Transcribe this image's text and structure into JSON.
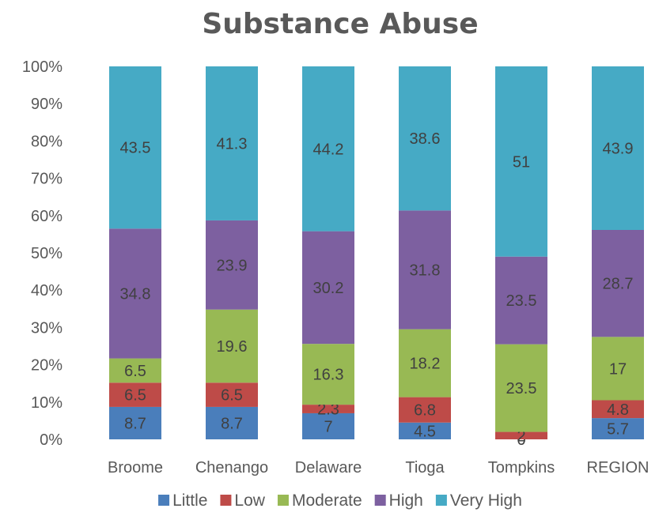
{
  "chart_data": {
    "type": "bar",
    "stacked": true,
    "percent_stacked": true,
    "title": "Substance Abuse",
    "categories": [
      "Broome",
      "Chenango",
      "Delaware",
      "Tioga",
      "Tompkins",
      "REGION"
    ],
    "y_ticks": [
      "0%",
      "10%",
      "20%",
      "30%",
      "40%",
      "50%",
      "60%",
      "70%",
      "80%",
      "90%",
      "100%"
    ],
    "ylim": [
      0,
      100
    ],
    "grid": false,
    "legend_position": "bottom",
    "series": [
      {
        "name": "Little",
        "color": "#4a7ebb",
        "values": [
          8.7,
          8.7,
          7,
          4.5,
          0,
          5.7
        ]
      },
      {
        "name": "Low",
        "color": "#be4b48",
        "values": [
          6.5,
          6.5,
          2.3,
          6.8,
          2,
          4.8
        ]
      },
      {
        "name": "Moderate",
        "color": "#98b954",
        "values": [
          6.5,
          19.6,
          16.3,
          18.2,
          23.5,
          17
        ]
      },
      {
        "name": "High",
        "color": "#7d60a0",
        "values": [
          34.8,
          23.9,
          30.2,
          31.8,
          23.5,
          28.7
        ]
      },
      {
        "name": "Very High",
        "color": "#46aac5",
        "values": [
          43.5,
          41.3,
          44.2,
          38.6,
          51,
          43.9
        ]
      }
    ]
  }
}
